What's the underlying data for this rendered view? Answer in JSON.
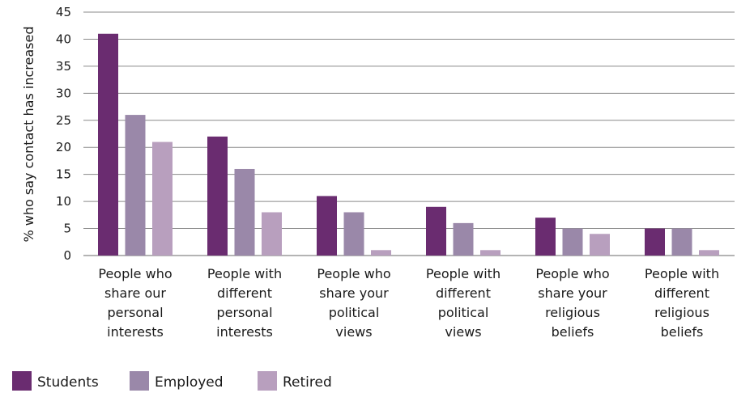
{
  "chart_data": {
    "type": "bar",
    "categories": [
      [
        "People who",
        "share our",
        "personal",
        "interests"
      ],
      [
        "People with",
        "different",
        "personal",
        "interests"
      ],
      [
        "People who",
        "share your",
        "political",
        "views"
      ],
      [
        "People with",
        "different",
        "political",
        "views"
      ],
      [
        "People who",
        "share your",
        "religious",
        "beliefs"
      ],
      [
        "People with",
        "different",
        "religious",
        "beliefs"
      ]
    ],
    "series": [
      {
        "name": "Students",
        "color": "#6a2c70",
        "values": [
          41,
          22,
          11,
          9,
          7,
          5
        ]
      },
      {
        "name": "Employed",
        "color": "#9a88a9",
        "values": [
          26,
          16,
          8,
          6,
          5,
          5
        ]
      },
      {
        "name": "Retired",
        "color": "#b89fbe",
        "values": [
          21,
          8,
          1,
          1,
          4,
          1
        ]
      }
    ],
    "ylabel": "% who say contact has increased",
    "ylim": [
      0,
      45
    ],
    "yticks": [
      0,
      5,
      10,
      15,
      20,
      25,
      30,
      35,
      40,
      45
    ],
    "grid": true,
    "legend": "bottom-left"
  }
}
